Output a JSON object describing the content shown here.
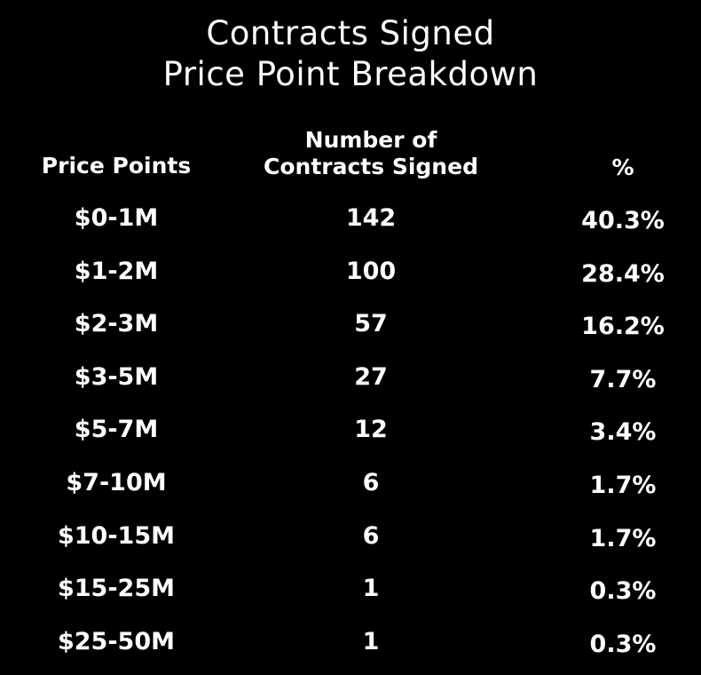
{
  "title": {
    "line1": "Contracts Signed",
    "line2": "Price Point Breakdown"
  },
  "columns": {
    "price": "Price Points",
    "count_line1": "Number of",
    "count_line2": "Contracts Signed",
    "pct": "%"
  },
  "chart_data": {
    "type": "table",
    "title": "Contracts Signed Price Point Breakdown",
    "columns": [
      "Price Points",
      "Number of Contracts Signed",
      "%"
    ],
    "rows": [
      {
        "price": "$0-1M",
        "count": "142",
        "pct": "40.3%"
      },
      {
        "price": "$1-2M",
        "count": "100",
        "pct": "28.4%"
      },
      {
        "price": "$2-3M",
        "count": "57",
        "pct": "16.2%"
      },
      {
        "price": "$3-5M",
        "count": "27",
        "pct": "7.7%"
      },
      {
        "price": "$5-7M",
        "count": "12",
        "pct": "3.4%"
      },
      {
        "price": "$7-10M",
        "count": "6",
        "pct": "1.7%"
      },
      {
        "price": "$10-15M",
        "count": "6",
        "pct": "1.7%"
      },
      {
        "price": "$15-25M",
        "count": "1",
        "pct": "0.3%"
      },
      {
        "price": "$25-50M",
        "count": "1",
        "pct": "0.3%"
      }
    ]
  },
  "colors": {
    "background": "#000000",
    "text": "#ffffff"
  }
}
